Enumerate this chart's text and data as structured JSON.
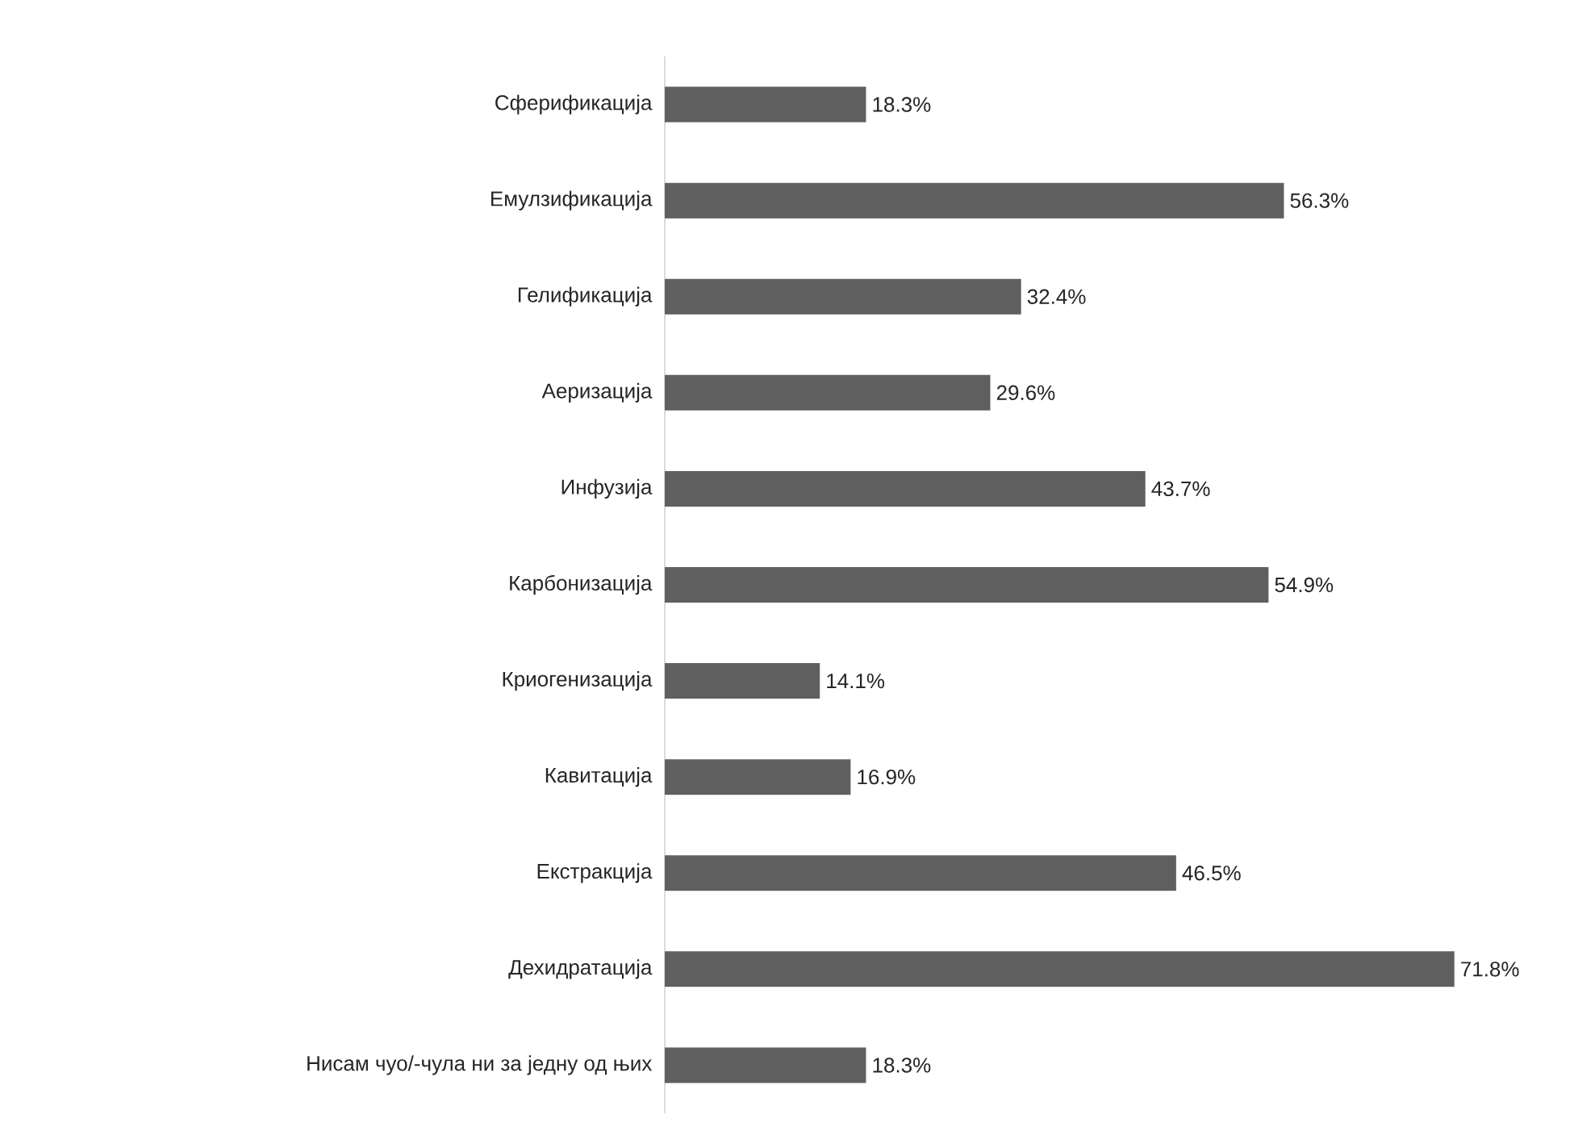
{
  "chart_data": {
    "type": "bar",
    "orientation": "horizontal",
    "color": "#5f5f5f",
    "categories": [
      "Сферификација",
      "Емулзификација",
      "Гелификација",
      "Аеризација",
      "Инфузија",
      "Карбонизација",
      "Криогенизација",
      "Кавитација",
      "Екстракција",
      "Дехидратација",
      "Нисам чуо/-чула ни за једну од њих"
    ],
    "values": [
      18.3,
      56.3,
      32.4,
      29.6,
      43.7,
      54.9,
      14.1,
      16.9,
      46.5,
      71.8,
      18.3
    ],
    "value_labels": [
      "18.3%",
      "56.3%",
      "32.4%",
      "29.6%",
      "43.7%",
      "54.9%",
      "14.1%",
      "16.9%",
      "46.5%",
      "71.8%",
      "18.3%"
    ]
  }
}
